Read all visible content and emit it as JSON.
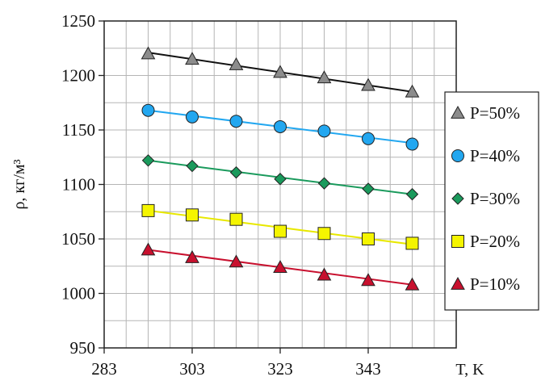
{
  "chart_data": {
    "type": "scatter",
    "title": "",
    "xlabel": "T, K",
    "ylabel": "ρ, кг/м³",
    "xlim": [
      283,
      363
    ],
    "ylim": [
      950,
      1250
    ],
    "x_ticks": [
      283,
      303,
      323,
      343
    ],
    "y_ticks": [
      950,
      1000,
      1050,
      1100,
      1150,
      1200,
      1250
    ],
    "x_minor_step": 5,
    "y_minor_step": 25,
    "grid": true,
    "legend_position": "right",
    "series": [
      {
        "name": "P=50%",
        "marker": "triangle",
        "marker_color": "#8c8c8c",
        "line_color": "#111111",
        "x": [
          293,
          303,
          313,
          323,
          333,
          343,
          353
        ],
        "y": [
          1220,
          1215,
          1210,
          1203,
          1198,
          1191,
          1185
        ],
        "fit": [
          1221,
          1185
        ]
      },
      {
        "name": "P=40%",
        "marker": "circle",
        "marker_color": "#22a7f0",
        "line_color": "#22a7f0",
        "x": [
          293,
          303,
          313,
          323,
          333,
          343,
          353
        ],
        "y": [
          1168,
          1162,
          1158,
          1153,
          1149,
          1142,
          1137
        ],
        "fit": [
          1168,
          1138
        ]
      },
      {
        "name": "P=30%",
        "marker": "diamond",
        "marker_color": "#1a9a5c",
        "line_color": "#1a9a5c",
        "x": [
          293,
          303,
          313,
          323,
          333,
          343,
          353
        ],
        "y": [
          1122,
          1117,
          1111,
          1105,
          1101,
          1096,
          1091
        ],
        "fit": [
          1122,
          1091
        ]
      },
      {
        "name": "P=20%",
        "marker": "square",
        "marker_color": "#f5f500",
        "line_color": "#e8e800",
        "x": [
          293,
          303,
          313,
          323,
          333,
          343,
          353
        ],
        "y": [
          1076,
          1072,
          1068,
          1057,
          1055,
          1050,
          1046
        ],
        "fit": [
          1076,
          1045
        ]
      },
      {
        "name": "P=10%",
        "marker": "triangle",
        "marker_color": "#c8102e",
        "line_color": "#c8102e",
        "x": [
          293,
          303,
          313,
          323,
          333,
          343,
          353
        ],
        "y": [
          1040,
          1033,
          1029,
          1024,
          1017,
          1012,
          1008
        ],
        "fit": [
          1040,
          1008
        ]
      }
    ]
  }
}
